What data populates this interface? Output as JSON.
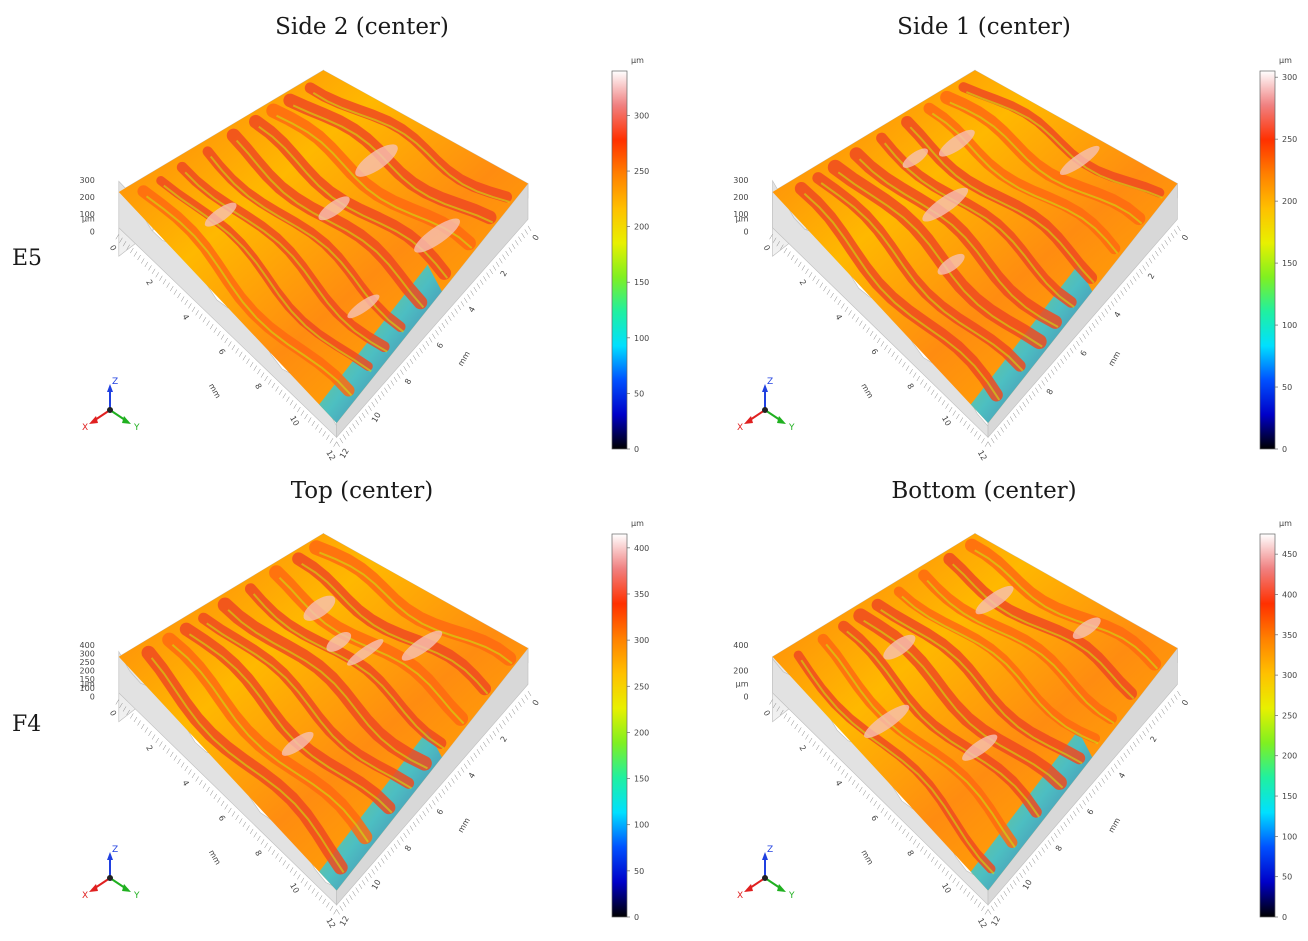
{
  "row_labels": [
    "E5",
    "F4"
  ],
  "colors": {
    "scale": [
      "#000000",
      "#0000c8",
      "#0050ff",
      "#00e0ff",
      "#20f0a0",
      "#80f020",
      "#e8f000",
      "#ffc000",
      "#ff8000",
      "#ff3000",
      "#f08080",
      "#ffffff"
    ],
    "axis_x": "#e02020",
    "axis_y": "#20b020",
    "axis_z": "#2040e0"
  },
  "icons": {
    "orientation_triad": "xyz-triad-icon"
  },
  "triad": {
    "x": "X",
    "y": "Y",
    "z": "Z"
  },
  "panels": [
    {
      "id": "e5-side2",
      "title": "Side 2 (center)",
      "colorbar": {
        "unit": "µm",
        "max": 340,
        "ticks": [
          0,
          50,
          100,
          150,
          200,
          250,
          300
        ]
      },
      "z_axis": {
        "unit": "µm",
        "ticks": [
          0,
          100,
          200,
          300
        ]
      },
      "left_axis": {
        "unit": "mm",
        "ticks": [
          0,
          2,
          4,
          6,
          8,
          10,
          12
        ]
      },
      "right_axis": {
        "unit": "mm",
        "ticks": [
          0,
          2,
          4,
          6,
          8,
          10,
          12
        ]
      }
    },
    {
      "id": "e5-side1",
      "title": "Side 1 (center)",
      "colorbar": {
        "unit": "µm",
        "max": 305,
        "ticks": [
          0,
          50,
          100,
          150,
          200,
          250,
          300
        ]
      },
      "z_axis": {
        "unit": "µm",
        "ticks": [
          0,
          100,
          200,
          300
        ]
      },
      "left_axis": {
        "unit": "mm",
        "ticks": [
          0,
          2,
          4,
          6,
          8,
          10,
          12
        ]
      },
      "right_axis": {
        "unit": "mm",
        "ticks": [
          0,
          2,
          4,
          6,
          8
        ]
      }
    },
    {
      "id": "f4-top",
      "title": "Top (center)",
      "colorbar": {
        "unit": "µm",
        "max": 415,
        "ticks": [
          0,
          50,
          100,
          150,
          200,
          250,
          300,
          350,
          400
        ]
      },
      "z_axis": {
        "unit": "µm",
        "ticks": [
          0,
          100,
          150,
          200,
          250,
          300,
          400
        ]
      },
      "left_axis": {
        "unit": "mm",
        "ticks": [
          0,
          2,
          4,
          6,
          8,
          10,
          12
        ]
      },
      "right_axis": {
        "unit": "mm",
        "ticks": [
          0,
          2,
          4,
          6,
          8,
          10,
          12
        ]
      }
    },
    {
      "id": "f4-bottom",
      "title": "Bottom (center)",
      "colorbar": {
        "unit": "µm",
        "max": 475,
        "ticks": [
          0,
          50,
          100,
          150,
          200,
          250,
          300,
          350,
          400,
          450
        ]
      },
      "z_axis": {
        "unit": "µm",
        "ticks": [
          0,
          200,
          400
        ]
      },
      "left_axis": {
        "unit": "mm",
        "ticks": [
          0,
          2,
          4,
          6,
          8,
          10,
          12
        ]
      },
      "right_axis": {
        "unit": "mm",
        "ticks": [
          0,
          2,
          4,
          6,
          8,
          10,
          12
        ]
      }
    }
  ]
}
